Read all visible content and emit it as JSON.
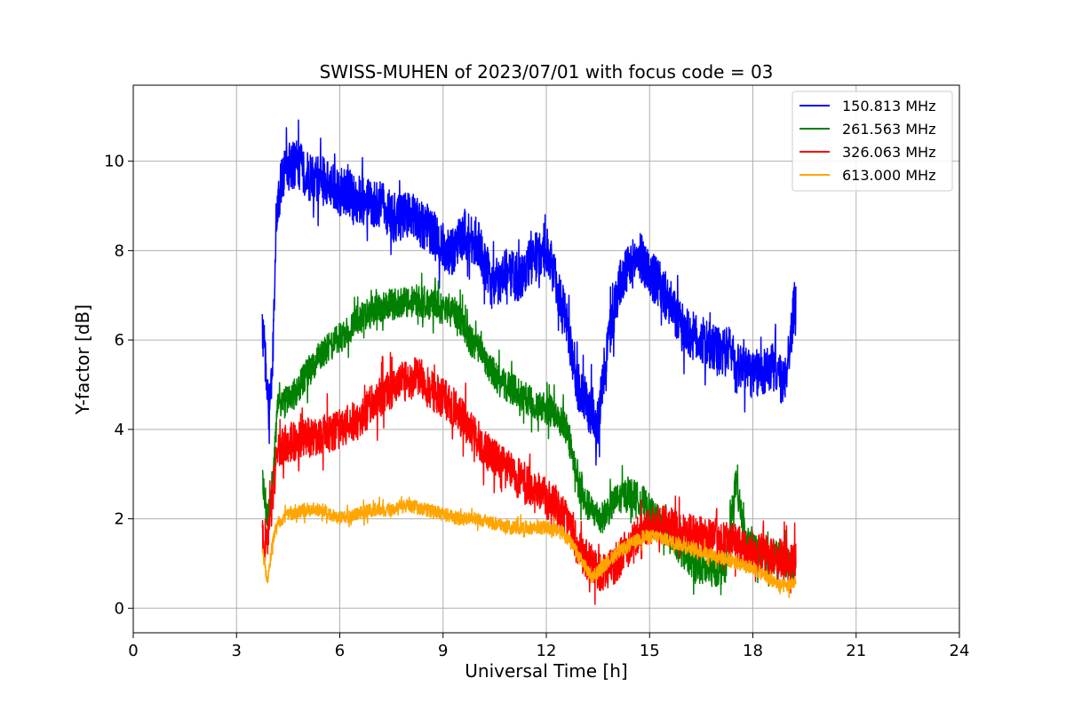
{
  "chart_data": {
    "type": "line",
    "title": "SWISS-MUHEN of 2023/07/01 with focus code = 03",
    "xlabel": "Universal Time [h]",
    "ylabel": "Y-factor [dB]",
    "xlim": [
      0,
      24
    ],
    "ylim": [
      -0.55,
      11.7
    ],
    "xticks": [
      0,
      3,
      6,
      9,
      12,
      15,
      18,
      21,
      24
    ],
    "yticks": [
      0,
      2,
      4,
      6,
      8,
      10
    ],
    "grid": true,
    "legend_position": "top-right",
    "series": [
      {
        "name": "150.813 MHz",
        "color": "#0000ff",
        "x": [
          3.75,
          3.85,
          3.95,
          4.05,
          4.15,
          4.3,
          4.5,
          4.8,
          5.2,
          5.6,
          6.0,
          6.4,
          6.8,
          7.2,
          7.6,
          8.0,
          8.4,
          8.8,
          9.2,
          9.6,
          10.0,
          10.4,
          10.8,
          11.2,
          11.6,
          12.0,
          12.3,
          12.6,
          12.9,
          13.2,
          13.5,
          13.8,
          14.1,
          14.4,
          14.7,
          15.0,
          15.3,
          15.6,
          15.9,
          16.2,
          16.5,
          16.8,
          17.1,
          17.4,
          17.5,
          17.7,
          18.0,
          18.3,
          18.6,
          18.9,
          19.1,
          19.25
        ],
        "y": [
          6.2,
          5.5,
          4.0,
          5.5,
          8.5,
          9.6,
          9.9,
          9.9,
          9.6,
          9.5,
          9.3,
          9.2,
          9.1,
          9.0,
          8.7,
          8.8,
          8.6,
          8.3,
          7.9,
          8.4,
          8.2,
          7.2,
          7.5,
          7.4,
          7.8,
          8.0,
          7.3,
          6.4,
          5.0,
          4.5,
          4.2,
          6.0,
          7.2,
          7.6,
          7.9,
          7.5,
          7.2,
          6.8,
          6.3,
          6.1,
          6.0,
          5.8,
          5.7,
          5.8,
          5.3,
          5.5,
          5.2,
          5.3,
          5.4,
          5.0,
          6.0,
          7.2
        ]
      },
      {
        "name": "261.563 MHz",
        "color": "#008000",
        "x": [
          3.75,
          3.9,
          4.05,
          4.2,
          4.4,
          4.7,
          5.0,
          5.4,
          5.8,
          6.2,
          6.6,
          7.0,
          7.4,
          7.8,
          8.2,
          8.6,
          9.0,
          9.4,
          9.8,
          10.2,
          10.6,
          11.0,
          11.4,
          11.8,
          12.2,
          12.6,
          13.0,
          13.3,
          13.6,
          14.0,
          14.4,
          14.8,
          15.2,
          15.6,
          16.0,
          16.4,
          16.8,
          17.2,
          17.5,
          17.8,
          18.1,
          18.4,
          18.7,
          19.0,
          19.25
        ],
        "y": [
          2.9,
          2.0,
          3.0,
          4.5,
          4.6,
          4.8,
          5.2,
          5.6,
          5.9,
          6.2,
          6.5,
          6.7,
          6.8,
          6.8,
          6.9,
          6.8,
          6.7,
          6.6,
          6.0,
          5.6,
          5.1,
          4.9,
          4.7,
          4.5,
          4.4,
          4.0,
          2.5,
          2.2,
          2.0,
          2.4,
          2.6,
          2.4,
          2.0,
          1.6,
          1.2,
          0.9,
          0.8,
          0.9,
          2.8,
          1.5,
          1.3,
          1.1,
          1.2,
          1.0,
          1.0
        ]
      },
      {
        "name": "326.063 MHz",
        "color": "#ff0000",
        "x": [
          3.75,
          3.9,
          4.05,
          4.2,
          4.5,
          5.0,
          5.5,
          6.0,
          6.5,
          7.0,
          7.5,
          8.0,
          8.3,
          8.6,
          9.0,
          9.4,
          9.8,
          10.2,
          10.6,
          11.0,
          11.4,
          11.8,
          12.2,
          12.6,
          13.0,
          13.3,
          13.6,
          14.0,
          14.4,
          14.8,
          15.2,
          15.6,
          16.0,
          16.4,
          16.8,
          17.2,
          17.6,
          18.0,
          18.4,
          18.8,
          19.25
        ],
        "y": [
          1.6,
          1.5,
          2.5,
          3.5,
          3.7,
          3.8,
          3.9,
          4.0,
          4.2,
          4.6,
          4.9,
          5.1,
          5.2,
          4.9,
          4.7,
          4.4,
          4.0,
          3.6,
          3.3,
          3.0,
          2.8,
          2.6,
          2.3,
          2.0,
          1.2,
          1.0,
          0.8,
          1.0,
          1.4,
          1.8,
          1.9,
          1.8,
          1.7,
          1.6,
          1.6,
          1.5,
          1.4,
          1.3,
          1.2,
          1.1,
          1.0
        ]
      },
      {
        "name": "613.000 MHz",
        "color": "#ffa500",
        "x": [
          3.75,
          3.9,
          4.05,
          4.2,
          4.5,
          5.0,
          5.5,
          6.0,
          6.5,
          7.0,
          7.5,
          8.0,
          8.5,
          9.0,
          9.5,
          10.0,
          10.5,
          11.0,
          11.5,
          12.0,
          12.5,
          13.0,
          13.3,
          13.6,
          14.0,
          14.4,
          14.8,
          15.2,
          15.6,
          16.0,
          16.4,
          16.8,
          17.2,
          17.6,
          18.0,
          18.4,
          18.8,
          19.0,
          19.25
        ],
        "y": [
          1.3,
          0.6,
          1.5,
          1.9,
          2.1,
          2.2,
          2.2,
          2.0,
          2.1,
          2.2,
          2.2,
          2.3,
          2.2,
          2.1,
          2.0,
          2.0,
          1.9,
          1.8,
          1.8,
          1.8,
          1.7,
          1.1,
          0.7,
          0.9,
          1.2,
          1.4,
          1.6,
          1.6,
          1.5,
          1.4,
          1.3,
          1.2,
          1.1,
          1.0,
          0.9,
          0.7,
          0.5,
          0.5,
          0.6
        ]
      }
    ]
  }
}
